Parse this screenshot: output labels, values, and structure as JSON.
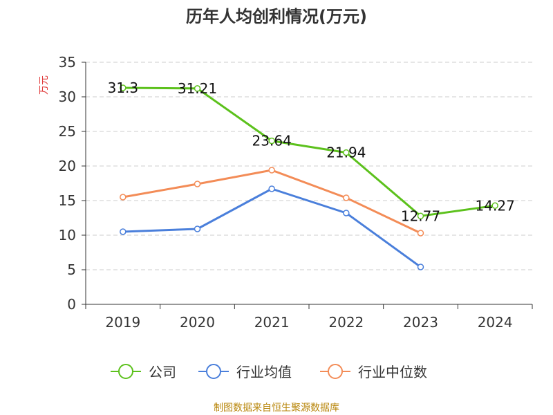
{
  "chart_data": {
    "type": "line",
    "title": "历年人均创利情况(万元)",
    "ylabel": "万元",
    "xlabel": "",
    "categories": [
      "2019",
      "2020",
      "2021",
      "2022",
      "2023",
      "2024"
    ],
    "ylim": [
      0,
      35
    ],
    "yticks": [
      "0",
      "5",
      "10",
      "15",
      "20",
      "25",
      "30",
      "35"
    ],
    "grid": true,
    "legend_position": "bottom",
    "series": [
      {
        "name": "公司",
        "color": "#5cc11c",
        "values": [
          31.3,
          31.21,
          23.64,
          21.94,
          12.77,
          14.27
        ],
        "labels": [
          "31.3",
          "31.21",
          "23.64",
          "21.94",
          "12.77",
          "14.27"
        ]
      },
      {
        "name": "行业均值",
        "color": "#4a7fdb",
        "values": [
          10.5,
          10.9,
          16.7,
          13.2,
          5.4,
          null
        ],
        "labels": []
      },
      {
        "name": "行业中位数",
        "color": "#f38c57",
        "values": [
          15.5,
          17.4,
          19.4,
          15.4,
          10.3,
          null
        ],
        "labels": []
      }
    ]
  },
  "footer": {
    "source": "制图数据来自恒生聚源数据库",
    "source_color": "#b8860b"
  },
  "unit_color": "#e03c3c"
}
